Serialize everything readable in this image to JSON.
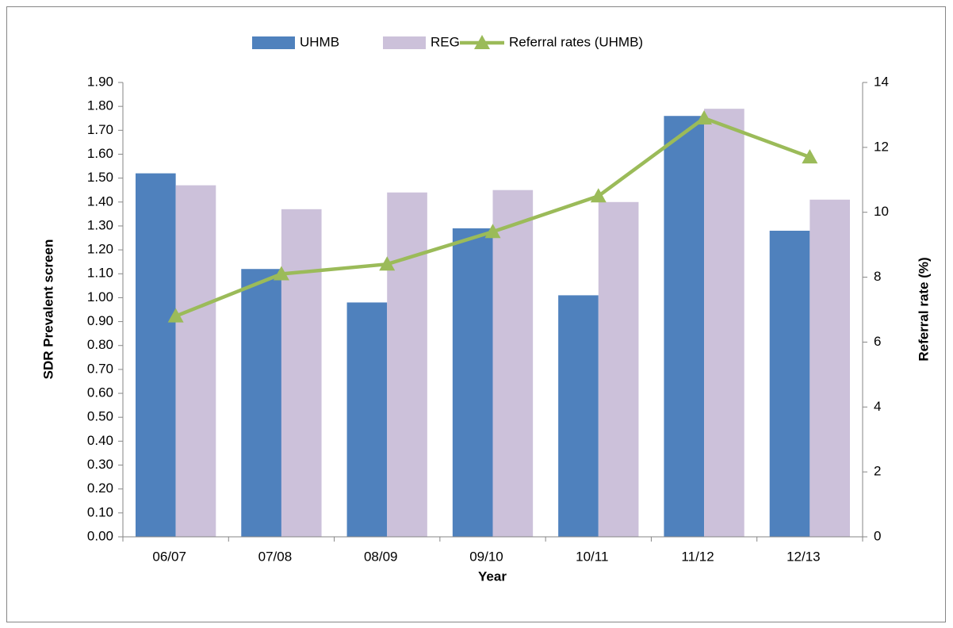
{
  "chart_data": {
    "type": "bar_line",
    "categories": [
      "06/07",
      "07/08",
      "08/09",
      "09/10",
      "10/11",
      "11/12",
      "12/13"
    ],
    "x_label": "Year",
    "y_label": "SDR Prevalent screen",
    "y2_label": "Referral rate (%)",
    "series": [
      {
        "name": "UHMB",
        "type": "bar",
        "color": "#4f81bd",
        "values": [
          1.52,
          1.12,
          0.98,
          1.29,
          1.01,
          1.76,
          1.28
        ]
      },
      {
        "name": "REG",
        "type": "bar",
        "color": "#ccc1da",
        "values": [
          1.47,
          1.37,
          1.44,
          1.45,
          1.4,
          1.79,
          1.41
        ]
      },
      {
        "name": "Referral rates (UHMB)",
        "type": "line",
        "axis": "y2",
        "color": "#9bbb59",
        "marker": "triangle",
        "values": [
          6.8,
          8.1,
          8.4,
          9.4,
          10.5,
          12.9,
          11.7
        ]
      }
    ],
    "ylim": [
      0,
      1.9
    ],
    "yticks": [
      {
        "value": 0,
        "label": "0.00"
      },
      {
        "value": 0.1,
        "label": "0.10"
      },
      {
        "value": 0.2,
        "label": "0.20"
      },
      {
        "value": 0.3,
        "label": "0.30"
      },
      {
        "value": 0.4,
        "label": "0.40"
      },
      {
        "value": 0.5,
        "label": "0.50"
      },
      {
        "value": 0.6,
        "label": "0.60"
      },
      {
        "value": 0.7,
        "label": "0.70"
      },
      {
        "value": 0.8,
        "label": "0.80"
      },
      {
        "value": 0.9,
        "label": "0.90"
      },
      {
        "value": 1,
        "label": "1.00"
      },
      {
        "value": 1.1,
        "label": "1.10"
      },
      {
        "value": 1.2,
        "label": "1.20"
      },
      {
        "value": 1.3,
        "label": "1.30"
      },
      {
        "value": 1.4,
        "label": "1.40"
      },
      {
        "value": 1.5,
        "label": "1.50"
      },
      {
        "value": 1.6,
        "label": "1.60"
      },
      {
        "value": 1.7,
        "label": "1.70"
      },
      {
        "value": 1.8,
        "label": "1.80"
      },
      {
        "value": 1.9,
        "label": "1.90"
      }
    ],
    "y2lim": [
      0,
      14
    ],
    "y2ticks": [
      0,
      2,
      4,
      6,
      8,
      10,
      12,
      14
    ],
    "legend": "top"
  }
}
